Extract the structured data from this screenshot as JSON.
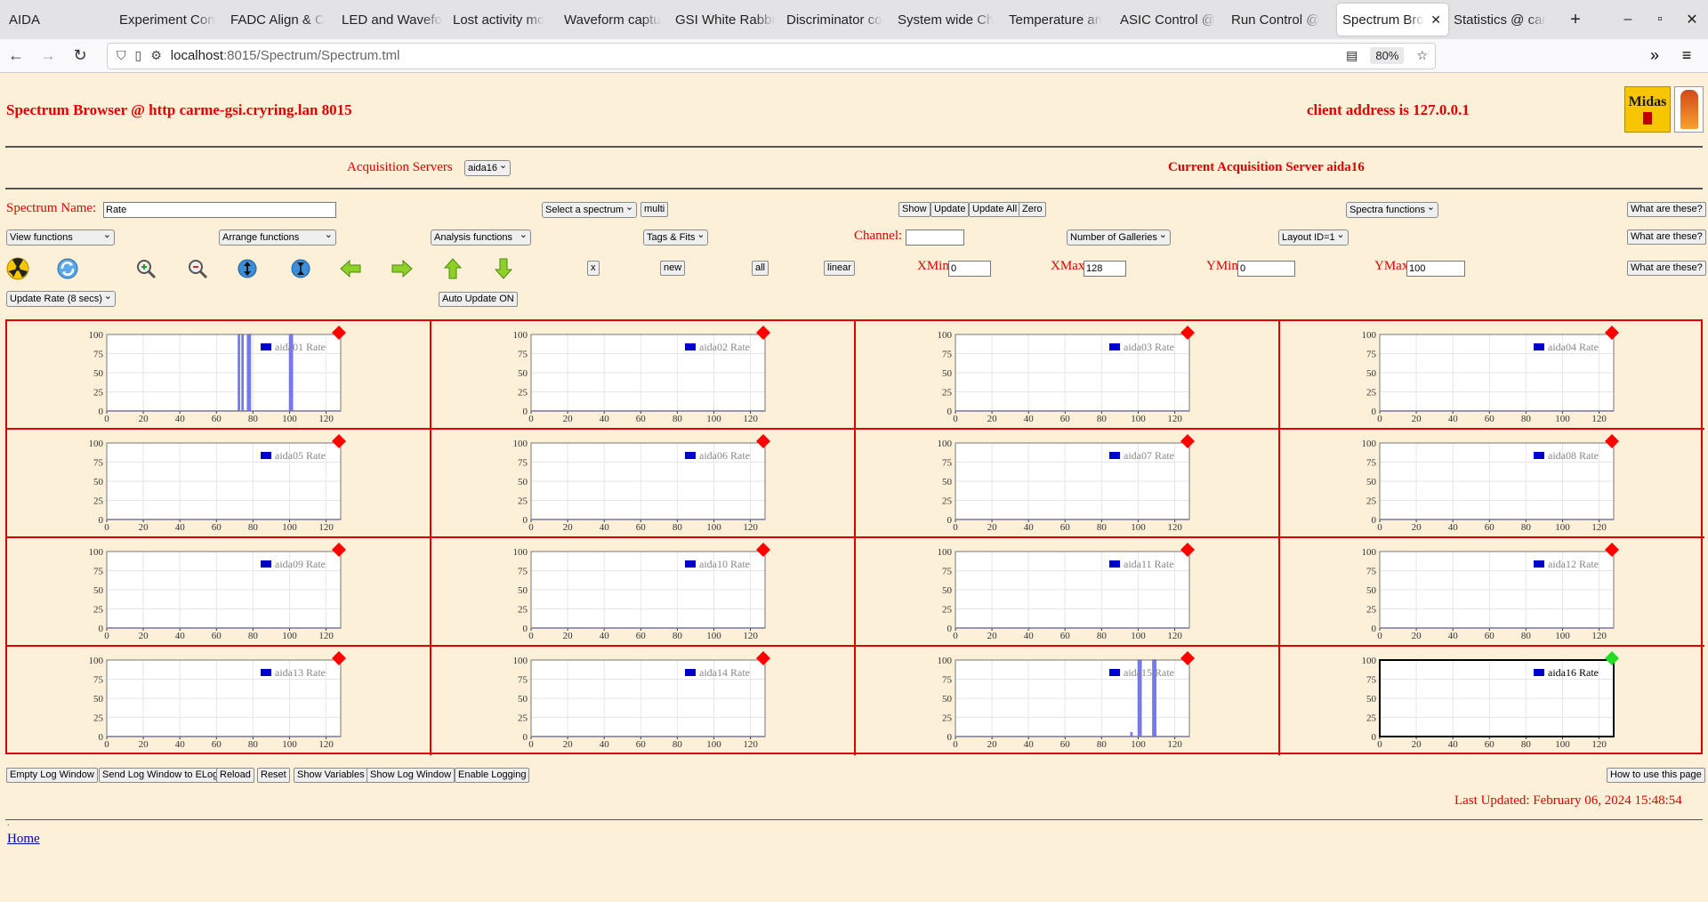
{
  "browser": {
    "app_name": "AIDA",
    "tabs": [
      {
        "label": "Experiment Con"
      },
      {
        "label": "FADC Align & C"
      },
      {
        "label": "LED and Wavefo"
      },
      {
        "label": "Lost activity mo"
      },
      {
        "label": "Waveform captu"
      },
      {
        "label": "GSI White Rabbi"
      },
      {
        "label": "Discriminator co"
      },
      {
        "label": "System wide Ch"
      },
      {
        "label": "Temperature an"
      },
      {
        "label": "ASIC Control @"
      },
      {
        "label": "Run Control @"
      },
      {
        "label": "Spectrum Bro",
        "active": true
      },
      {
        "label": "Statistics @ car"
      }
    ],
    "url_host": "localhost",
    "url_path": ":8015/Spectrum/Spectrum.tml",
    "zoom": "80%"
  },
  "header": {
    "title": "Spectrum Browser @ http carme-gsi.cryring.lan 8015",
    "client": "client address is 127.0.0.1",
    "logo_text": "Midas"
  },
  "acq": {
    "label": "Acquisition Servers",
    "selected": "aida16",
    "current": "Current Acquisition Server aida16"
  },
  "row1": {
    "spectrum_name_label": "Spectrum Name:",
    "spectrum_name_value": "Rate",
    "select_spectrum": "Select a spectrum",
    "multi": "multi",
    "show": "Show",
    "update": "Update",
    "update_all": "Update All",
    "zero": "Zero",
    "spectra_functions": "Spectra functions",
    "what": "What are these?"
  },
  "row2": {
    "view_functions": "View functions",
    "arrange_functions": "Arrange functions",
    "analysis_functions": "Analysis functions",
    "tags_fits": "Tags & Fits",
    "channel_label": "Channel:",
    "channel_value": "",
    "galleries": "Number of Galleries",
    "layout": "Layout ID=1",
    "what": "What are these?"
  },
  "row3": {
    "x": "x",
    "new": "new",
    "all": "all",
    "linear": "linear",
    "xmin_label": "XMin",
    "xmin": "0",
    "xmax_label": "XMax",
    "xmax": "128",
    "ymin_label": "YMin",
    "ymin": "0",
    "ymax_label": "YMax",
    "ymax": "100",
    "what": "What are these?"
  },
  "row4": {
    "update_rate": "Update Rate (8 secs)",
    "auto_update": "Auto Update ON"
  },
  "colors": {
    "status_red": "#ff0000",
    "status_green": "#22dd22",
    "series": "#0000cc",
    "trace": "#7777ee"
  },
  "chart_data": [
    {
      "type": "line",
      "name": "aida01 Rate",
      "x_ticks": [
        0,
        20,
        40,
        60,
        80,
        100,
        120
      ],
      "y_ticks": [
        0,
        25,
        50,
        75,
        100
      ],
      "xlim": [
        0,
        128
      ],
      "ylim": [
        0,
        100
      ],
      "spikes": [
        [
          72,
          100
        ],
        [
          74,
          100
        ],
        [
          77,
          100
        ],
        [
          78,
          100
        ],
        [
          100,
          100
        ],
        [
          101,
          100
        ]
      ],
      "status": "red",
      "active": false
    },
    {
      "type": "line",
      "name": "aida02 Rate",
      "x_ticks": [
        0,
        20,
        40,
        60,
        80,
        100,
        120
      ],
      "y_ticks": [
        0,
        25,
        50,
        75,
        100
      ],
      "xlim": [
        0,
        128
      ],
      "ylim": [
        0,
        100
      ],
      "spikes": [],
      "status": "red",
      "active": false
    },
    {
      "type": "line",
      "name": "aida03 Rate",
      "x_ticks": [
        0,
        20,
        40,
        60,
        80,
        100,
        120
      ],
      "y_ticks": [
        0,
        25,
        50,
        75,
        100
      ],
      "xlim": [
        0,
        128
      ],
      "ylim": [
        0,
        100
      ],
      "spikes": [],
      "status": "red",
      "active": false
    },
    {
      "type": "line",
      "name": "aida04 Rate",
      "x_ticks": [
        0,
        20,
        40,
        60,
        80,
        100,
        120
      ],
      "y_ticks": [
        0,
        25,
        50,
        75,
        100
      ],
      "xlim": [
        0,
        128
      ],
      "ylim": [
        0,
        100
      ],
      "spikes": [],
      "status": "red",
      "active": false
    },
    {
      "type": "line",
      "name": "aida05 Rate",
      "x_ticks": [
        0,
        20,
        40,
        60,
        80,
        100,
        120
      ],
      "y_ticks": [
        0,
        25,
        50,
        75,
        100
      ],
      "xlim": [
        0,
        128
      ],
      "ylim": [
        0,
        100
      ],
      "spikes": [],
      "status": "red",
      "active": false
    },
    {
      "type": "line",
      "name": "aida06 Rate",
      "x_ticks": [
        0,
        20,
        40,
        60,
        80,
        100,
        120
      ],
      "y_ticks": [
        0,
        25,
        50,
        75,
        100
      ],
      "xlim": [
        0,
        128
      ],
      "ylim": [
        0,
        100
      ],
      "spikes": [],
      "status": "red",
      "active": false
    },
    {
      "type": "line",
      "name": "aida07 Rate",
      "x_ticks": [
        0,
        20,
        40,
        60,
        80,
        100,
        120
      ],
      "y_ticks": [
        0,
        25,
        50,
        75,
        100
      ],
      "xlim": [
        0,
        128
      ],
      "ylim": [
        0,
        100
      ],
      "spikes": [],
      "status": "red",
      "active": false
    },
    {
      "type": "line",
      "name": "aida08 Rate",
      "x_ticks": [
        0,
        20,
        40,
        60,
        80,
        100,
        120
      ],
      "y_ticks": [
        0,
        25,
        50,
        75,
        100
      ],
      "xlim": [
        0,
        128
      ],
      "ylim": [
        0,
        100
      ],
      "spikes": [],
      "status": "red",
      "active": false
    },
    {
      "type": "line",
      "name": "aida09 Rate",
      "x_ticks": [
        0,
        20,
        40,
        60,
        80,
        100,
        120
      ],
      "y_ticks": [
        0,
        25,
        50,
        75,
        100
      ],
      "xlim": [
        0,
        128
      ],
      "ylim": [
        0,
        100
      ],
      "spikes": [],
      "status": "red",
      "active": false
    },
    {
      "type": "line",
      "name": "aida10 Rate",
      "x_ticks": [
        0,
        20,
        40,
        60,
        80,
        100,
        120
      ],
      "y_ticks": [
        0,
        25,
        50,
        75,
        100
      ],
      "xlim": [
        0,
        128
      ],
      "ylim": [
        0,
        100
      ],
      "spikes": [],
      "status": "red",
      "active": false
    },
    {
      "type": "line",
      "name": "aida11 Rate",
      "x_ticks": [
        0,
        20,
        40,
        60,
        80,
        100,
        120
      ],
      "y_ticks": [
        0,
        25,
        50,
        75,
        100
      ],
      "xlim": [
        0,
        128
      ],
      "ylim": [
        0,
        100
      ],
      "spikes": [],
      "status": "red",
      "active": false
    },
    {
      "type": "line",
      "name": "aida12 Rate",
      "x_ticks": [
        0,
        20,
        40,
        60,
        80,
        100,
        120
      ],
      "y_ticks": [
        0,
        25,
        50,
        75,
        100
      ],
      "xlim": [
        0,
        128
      ],
      "ylim": [
        0,
        100
      ],
      "spikes": [],
      "status": "red",
      "active": false
    },
    {
      "type": "line",
      "name": "aida13 Rate",
      "x_ticks": [
        0,
        20,
        40,
        60,
        80,
        100,
        120
      ],
      "y_ticks": [
        0,
        25,
        50,
        75,
        100
      ],
      "xlim": [
        0,
        128
      ],
      "ylim": [
        0,
        100
      ],
      "spikes": [],
      "status": "red",
      "active": false
    },
    {
      "type": "line",
      "name": "aida14 Rate",
      "x_ticks": [
        0,
        20,
        40,
        60,
        80,
        100,
        120
      ],
      "y_ticks": [
        0,
        25,
        50,
        75,
        100
      ],
      "xlim": [
        0,
        128
      ],
      "ylim": [
        0,
        100
      ],
      "spikes": [],
      "status": "red",
      "active": false
    },
    {
      "type": "line",
      "name": "aida15 Rate",
      "x_ticks": [
        0,
        20,
        40,
        60,
        80,
        100,
        120
      ],
      "y_ticks": [
        0,
        25,
        50,
        75,
        100
      ],
      "xlim": [
        0,
        128
      ],
      "ylim": [
        0,
        100
      ],
      "spikes": [
        [
          96,
          5
        ],
        [
          100,
          100
        ],
        [
          101,
          100
        ],
        [
          108,
          100
        ],
        [
          109,
          100
        ]
      ],
      "status": "red",
      "active": false
    },
    {
      "type": "line",
      "name": "aida16 Rate",
      "x_ticks": [
        0,
        20,
        40,
        60,
        80,
        100,
        120
      ],
      "y_ticks": [
        0,
        25,
        50,
        75,
        100
      ],
      "xlim": [
        0,
        128
      ],
      "ylim": [
        0,
        100
      ],
      "spikes": [],
      "status": "green",
      "active": true
    }
  ],
  "footer": {
    "buttons": [
      "Empty Log Window",
      "Send Log Window to ELog",
      "Reload",
      "Reset",
      "Show Variables",
      "Show Log Window",
      "Enable Logging"
    ],
    "how_to": "How to use this page",
    "last_updated": "Last Updated: February 06, 2024 15:48:54",
    "dot": ".",
    "home": "Home"
  }
}
